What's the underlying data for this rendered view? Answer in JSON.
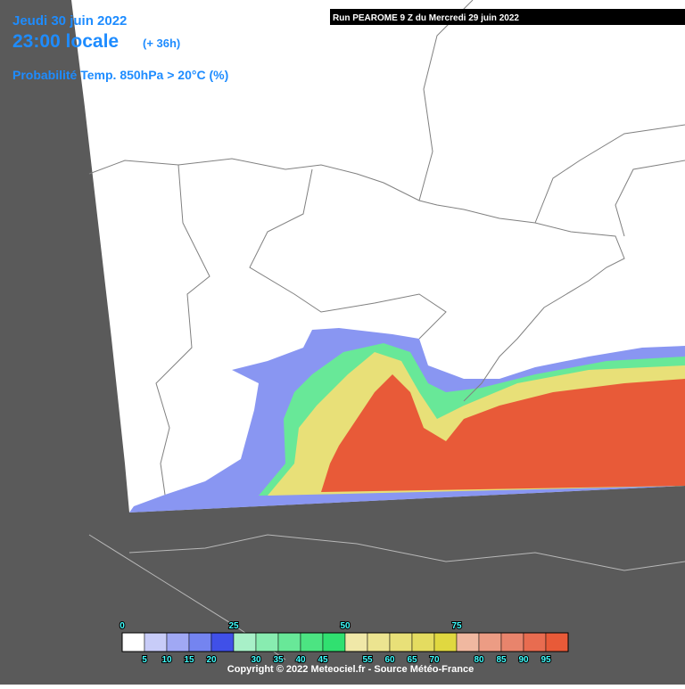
{
  "header": {
    "date": "Jeudi 30 juin 2022",
    "time": "23:00 locale",
    "lead": "(+ 36h)",
    "product": "Probabilité Temp. 850hPa > 20°C (%)"
  },
  "run": "Run PEAROME 9 Z du Mercredi 29 juin 2022",
  "legend": {
    "ticks": [
      0,
      5,
      10,
      15,
      20,
      25,
      30,
      35,
      40,
      45,
      50,
      55,
      60,
      65,
      70,
      75,
      80,
      85,
      90,
      95
    ],
    "colors": [
      "#ffffff",
      "#c8ccf8",
      "#a0a8f4",
      "#7484f0",
      "#4050e8",
      "#a8f0c8",
      "#88ecb0",
      "#68e898",
      "#4ce482",
      "#30e070",
      "#f0e8a8",
      "#ece490",
      "#e8e078",
      "#e4dc60",
      "#e0d840",
      "#f0b8a0",
      "#ec9c84",
      "#e8846c",
      "#e86c50",
      "#e85a38"
    ]
  },
  "copyright": "Copyright © 2022 Meteociel.fr - Source Météo-France"
}
